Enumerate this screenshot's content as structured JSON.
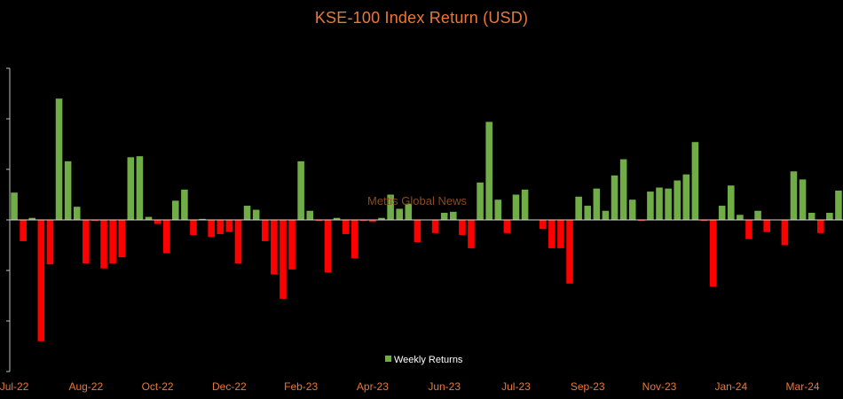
{
  "chart_data": {
    "type": "bar",
    "title": "KSE-100 Index Return (USD)",
    "xlabel": "",
    "ylabel": "",
    "ylim": [
      -0.15,
      0.15
    ],
    "grid": false,
    "legend_position": "bottom-center",
    "watermark": "Mettis Global News",
    "colors": {
      "positive": "#70ad47",
      "negative": "#ff0000",
      "axis": "#c0c0c0",
      "text": "#e8783a",
      "background": "#000000"
    },
    "x_tick_labels": [
      "Jul-22",
      "Aug-22",
      "Oct-22",
      "Dec-22",
      "Feb-23",
      "Apr-23",
      "Jun-23",
      "Jul-23",
      "Sep-23",
      "Nov-23",
      "Jan-24",
      "Mar-24"
    ],
    "x_tick_bar_index": [
      0,
      8,
      16,
      24,
      32,
      40,
      48,
      56,
      64,
      72,
      80,
      88
    ],
    "series": [
      {
        "name": "Weekly Returns",
        "values": [
          0.027,
          -0.021,
          0.002,
          -0.12,
          -0.044,
          0.12,
          0.058,
          0.013,
          -0.043,
          -0.001,
          -0.048,
          -0.043,
          -0.037,
          0.062,
          0.063,
          0.003,
          -0.004,
          -0.033,
          0.019,
          0.03,
          -0.015,
          0.001,
          -0.017,
          -0.014,
          -0.012,
          -0.043,
          0.014,
          0.01,
          -0.021,
          -0.054,
          -0.078,
          -0.049,
          0.058,
          0.009,
          -0.001,
          -0.052,
          0.002,
          -0.014,
          -0.038,
          -0.001,
          -0.002,
          0.002,
          0.025,
          0.011,
          0.016,
          -0.022,
          0.0,
          -0.013,
          0.007,
          0.008,
          -0.015,
          -0.028,
          0.037,
          0.097,
          0.02,
          -0.013,
          0.025,
          0.03,
          0.0,
          -0.009,
          -0.028,
          -0.028,
          -0.063,
          0.023,
          0.014,
          0.031,
          0.009,
          0.044,
          0.06,
          0.02,
          -0.001,
          0.028,
          0.032,
          0.031,
          0.039,
          0.045,
          0.077,
          -0.001,
          -0.066,
          0.014,
          0.034,
          0.005,
          -0.019,
          0.009,
          -0.012,
          0.0,
          -0.025,
          0.048,
          0.04,
          0.007,
          -0.013,
          0.007,
          0.029
        ]
      }
    ]
  }
}
